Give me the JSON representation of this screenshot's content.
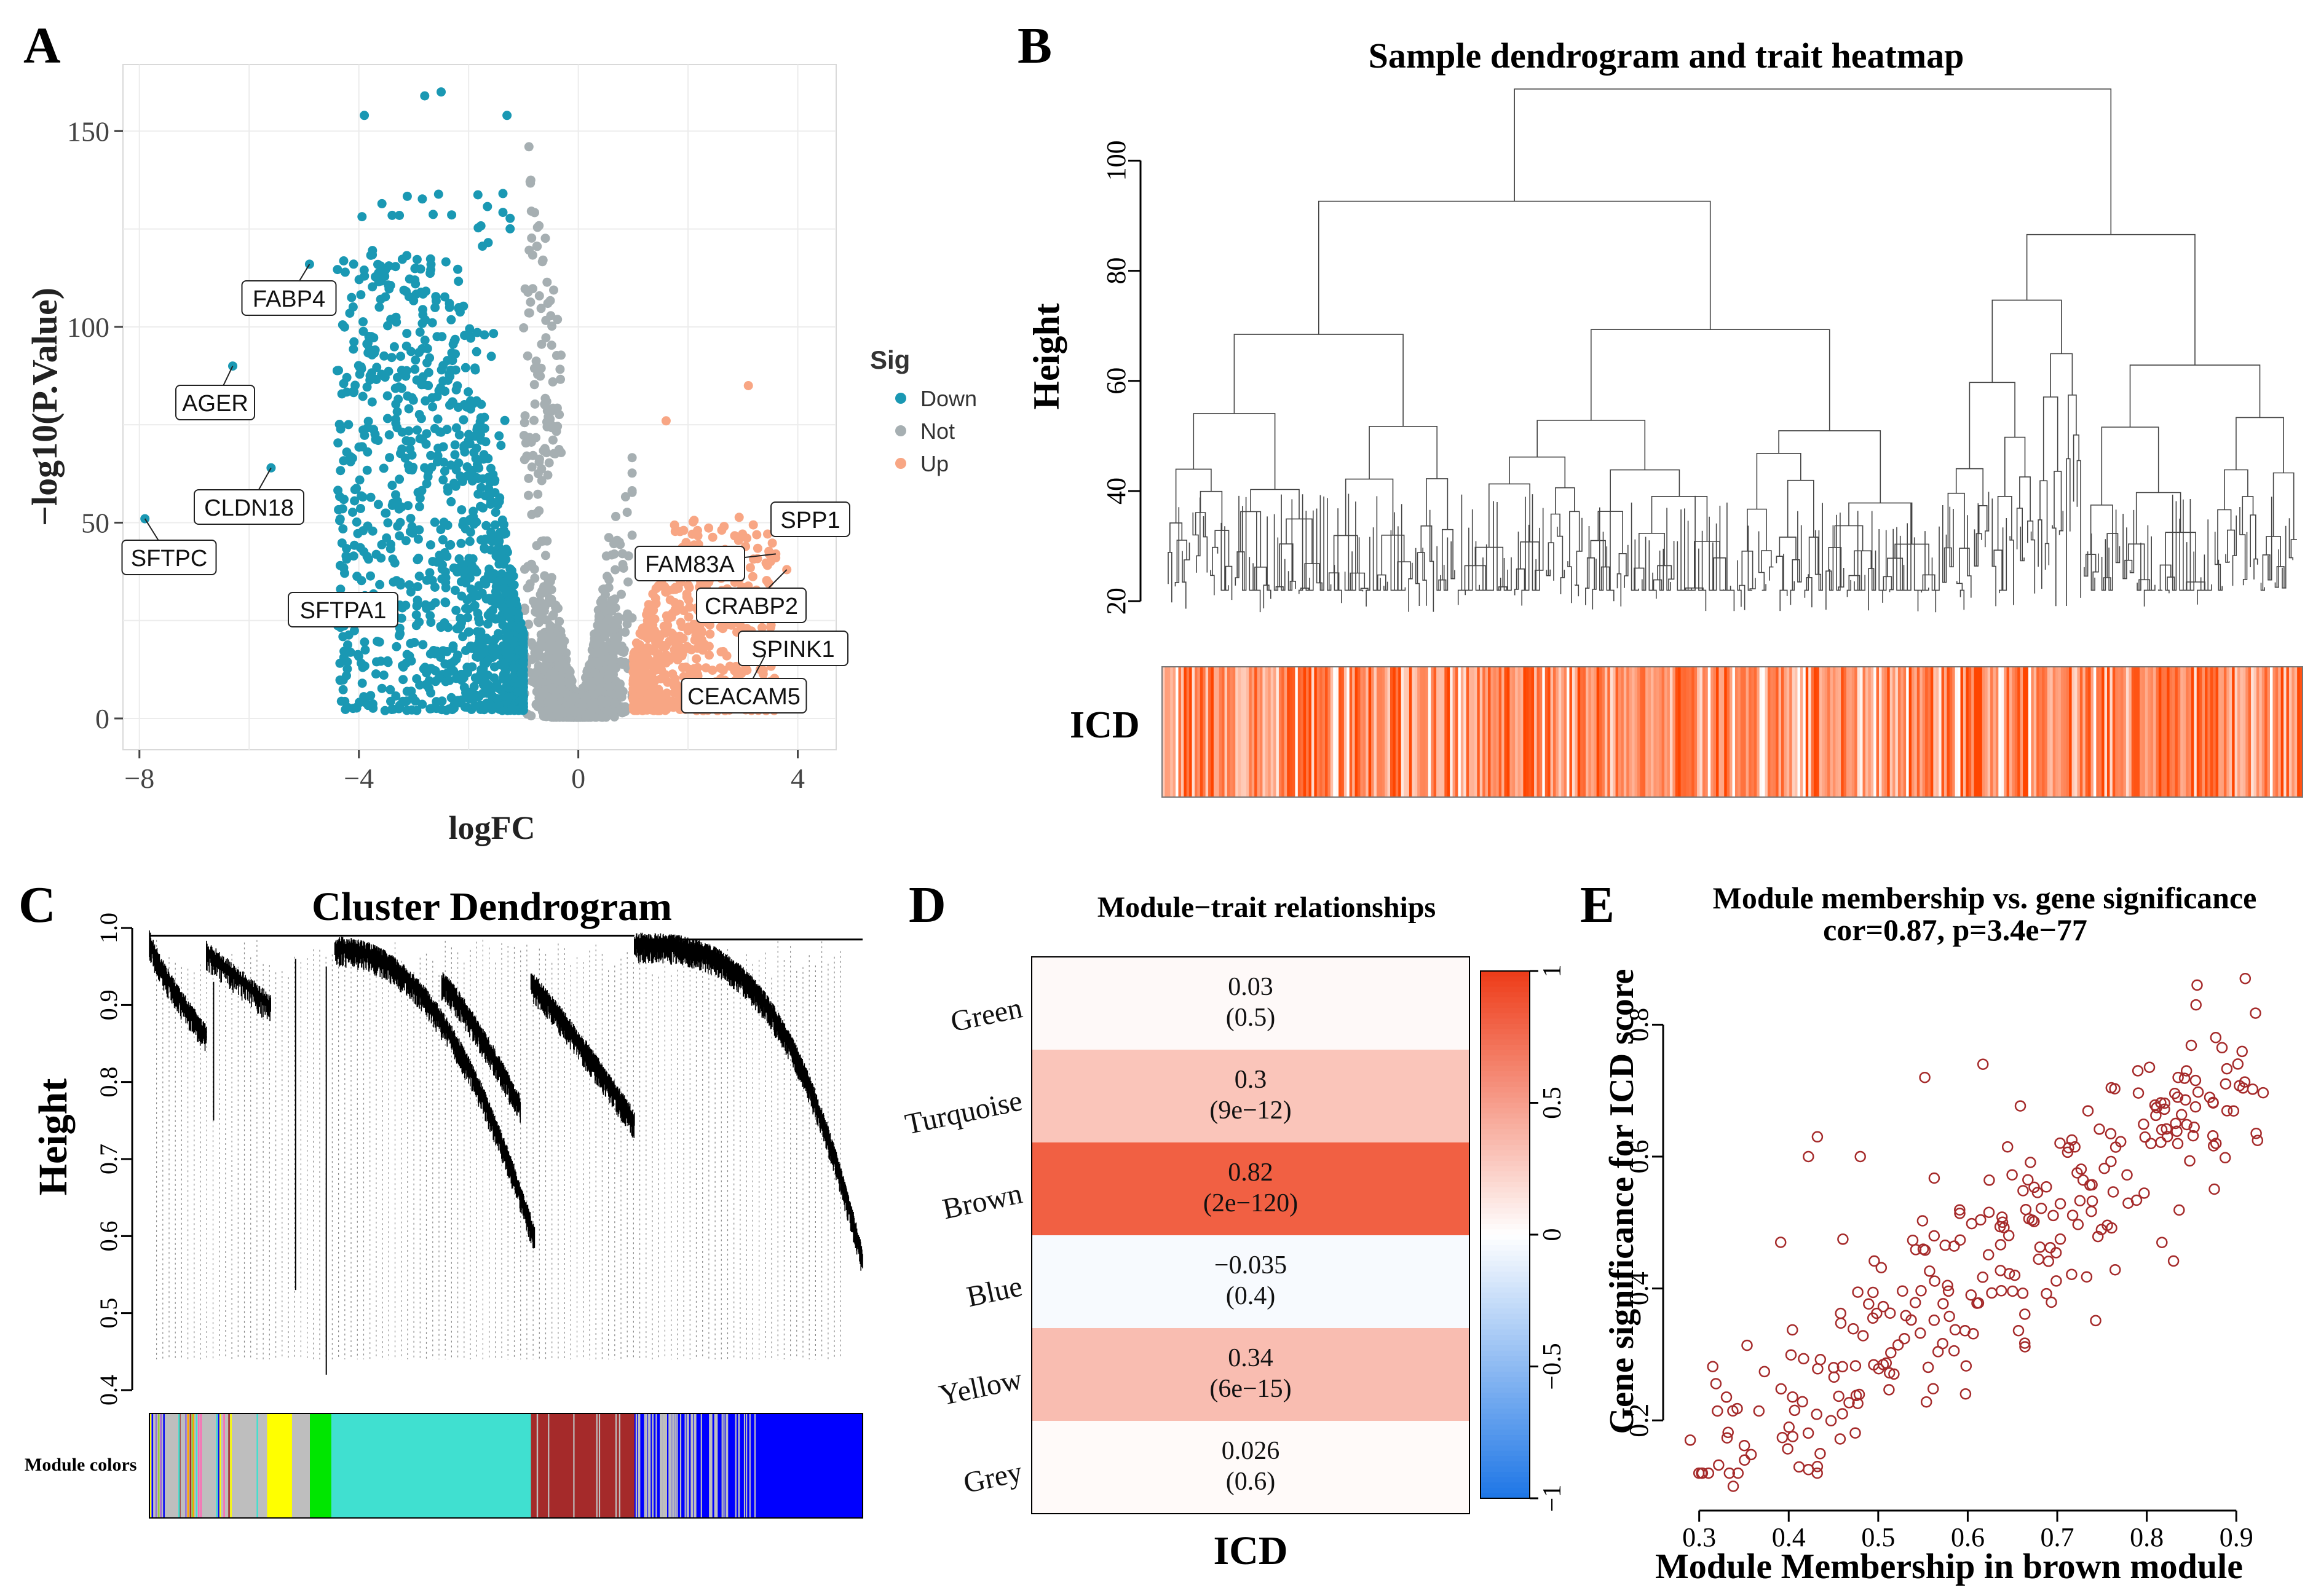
{
  "panel_letters": {
    "a": "A",
    "b": "B",
    "c": "C",
    "d": "D",
    "e": "E"
  },
  "chart_data": [
    {
      "panel": "A",
      "type": "scatter",
      "title": "",
      "xlabel": "logFC",
      "ylabel": "−log10(P.Value)",
      "xlim": [
        -8.3,
        4.7
      ],
      "ylim": [
        -8,
        167
      ],
      "xticks": [
        -8,
        -4,
        0,
        4
      ],
      "xtick_labels": [
        "−8",
        "−4",
        "0",
        "4"
      ],
      "yticks": [
        0,
        50,
        100,
        150
      ],
      "grid": true,
      "legend": {
        "title": "Sig",
        "position": "right",
        "entries": [
          {
            "label": "Down",
            "color": "#1a98b3"
          },
          {
            "label": "Not",
            "color": "#a6afb2"
          },
          {
            "label": "Up",
            "color": "#f8a684"
          }
        ]
      },
      "labeled_genes": [
        {
          "label": "FABP4",
          "x": -4.9,
          "y": 116,
          "group": "Down"
        },
        {
          "label": "AGER",
          "x": -6.3,
          "y": 90,
          "group": "Down"
        },
        {
          "label": "CLDN18",
          "x": -5.6,
          "y": 64,
          "group": "Down"
        },
        {
          "label": "SFTPC",
          "x": -7.9,
          "y": 51,
          "group": "Down"
        },
        {
          "label": "SFTPA1",
          "x": -4.7,
          "y": 27,
          "group": "Down"
        },
        {
          "label": "SPP1",
          "x": 4.3,
          "y": 48,
          "group": "Up"
        },
        {
          "label": "FAM83A",
          "x": 3.6,
          "y": 42,
          "group": "Up"
        },
        {
          "label": "CRABP2",
          "x": 3.8,
          "y": 38,
          "group": "Up"
        },
        {
          "label": "SPINK1",
          "x": 3.3,
          "y": 17,
          "group": "Up"
        },
        {
          "label": "CEACAM5",
          "x": 3.4,
          "y": 16,
          "group": "Up"
        }
      ],
      "notable_points": [
        {
          "x": -2.5,
          "y": 160,
          "group": "Down"
        },
        {
          "x": -1.3,
          "y": 154,
          "group": "Down"
        },
        {
          "x": -3.9,
          "y": 154,
          "group": "Down"
        },
        {
          "x": -2.8,
          "y": 159,
          "group": "Down"
        },
        {
          "x": -0.9,
          "y": 146,
          "group": "Not"
        },
        {
          "x": 3.1,
          "y": 85,
          "group": "Up"
        },
        {
          "x": 1.6,
          "y": 76,
          "group": "Up"
        }
      ]
    },
    {
      "panel": "B",
      "type": "heatmap",
      "title": "Sample dendrogram and trait heatmap",
      "ylabel": "Height",
      "yticks": [
        20,
        40,
        60,
        80,
        100
      ],
      "ylim": [
        12,
        118
      ],
      "trait_label": "ICD",
      "colormap": [
        "#ffffff",
        "#ff4500"
      ]
    },
    {
      "panel": "C",
      "type": "heatmap",
      "title": "Cluster Dendrogram",
      "ylabel": "Height",
      "yticks": [
        0.4,
        0.5,
        0.6,
        0.7,
        0.8,
        0.9,
        1.0
      ],
      "ylim": [
        0.4,
        1.0
      ],
      "color_bar_label": "Module colors",
      "module_segments": [
        {
          "color": "grey",
          "from": 0.0,
          "to": 0.165
        },
        {
          "color": "yellow",
          "from": 0.165,
          "to": 0.2
        },
        {
          "color": "grey",
          "from": 0.2,
          "to": 0.225
        },
        {
          "color": "green",
          "from": 0.225,
          "to": 0.255
        },
        {
          "color": "turquoise",
          "from": 0.255,
          "to": 0.535
        },
        {
          "color": "brown",
          "from": 0.535,
          "to": 0.68
        },
        {
          "color": "blue",
          "from": 0.68,
          "to": 1.0
        }
      ]
    },
    {
      "panel": "D",
      "type": "heatmap",
      "title": "Module−trait relationships",
      "xlabel": "ICD",
      "rows": [
        {
          "module": "Green",
          "cor": 0.03,
          "cor_label": "0.03",
          "p_label": "(0.5)"
        },
        {
          "module": "Turquoise",
          "cor": 0.3,
          "cor_label": "0.3",
          "p_label": "(9e−12)"
        },
        {
          "module": "Brown",
          "cor": 0.82,
          "cor_label": "0.82",
          "p_label": "(2e−120)"
        },
        {
          "module": "Blue",
          "cor": -0.035,
          "cor_label": "−0.035",
          "p_label": "(0.4)"
        },
        {
          "module": "Yellow",
          "cor": 0.34,
          "cor_label": "0.34",
          "p_label": "(6e−15)"
        },
        {
          "module": "Grey",
          "cor": 0.026,
          "cor_label": "0.026",
          "p_label": "(0.6)"
        }
      ],
      "colorbar": {
        "range": [
          -1,
          1
        ],
        "ticks": [
          1,
          0.5,
          0,
          -0.5,
          -1
        ],
        "tick_labels": [
          "1",
          "0.5",
          "0",
          "−0.5",
          "−1"
        ],
        "low": "#1f77e6",
        "mid": "#ffffff",
        "high": "#ee3d1a"
      }
    },
    {
      "panel": "E",
      "type": "scatter",
      "title": "Module membership vs. gene significance",
      "subtitle": "cor=0.87, p=3.4e−77",
      "xlabel": "Module Membership in brown module",
      "ylabel": "Gene significance for ICD score",
      "xlim": [
        0.27,
        0.95
      ],
      "ylim": [
        0.08,
        0.9
      ],
      "xticks": [
        0.3,
        0.4,
        0.5,
        0.6,
        0.7,
        0.8,
        0.9
      ],
      "yticks": [
        0.2,
        0.4,
        0.6,
        0.8
      ],
      "marker_color": "#a52a2a",
      "correlation": 0.87,
      "points": [
        {
          "x": 0.338,
          "y": 0.1
        },
        {
          "x": 0.432,
          "y": 0.13
        },
        {
          "x": 0.91,
          "y": 0.87
        },
        {
          "x": 0.855,
          "y": 0.83
        },
        {
          "x": 0.552,
          "y": 0.72
        },
        {
          "x": 0.617,
          "y": 0.74
        },
        {
          "x": 0.391,
          "y": 0.47
        },
        {
          "x": 0.422,
          "y": 0.6
        },
        {
          "x": 0.432,
          "y": 0.63
        },
        {
          "x": 0.48,
          "y": 0.6
        },
        {
          "x": 0.29,
          "y": 0.17
        },
        {
          "x": 0.46,
          "y": 0.21
        },
        {
          "x": 0.79,
          "y": 0.73
        },
        {
          "x": 0.835,
          "y": 0.72
        }
      ],
      "n_points_generated": 260
    }
  ]
}
